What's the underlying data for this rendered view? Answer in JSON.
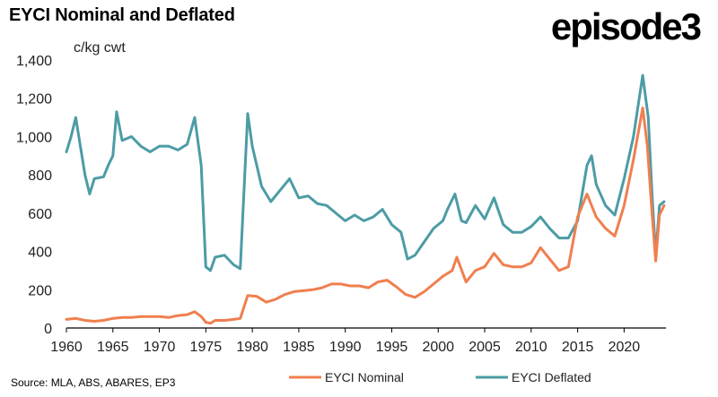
{
  "header": {
    "title": "EYCI Nominal and Deflated",
    "logo_text": "episode3"
  },
  "footer": {
    "source": "Source: MLA, ABS, ABARES, EP3"
  },
  "chart_data": {
    "type": "line",
    "title": "EYCI Nominal and Deflated",
    "ylabel": "c/kg cwt",
    "xlim": [
      1960,
      2024.5
    ],
    "ylim": [
      0,
      1400
    ],
    "x_ticks": [
      1960,
      1965,
      1970,
      1975,
      1980,
      1985,
      1990,
      1995,
      2000,
      2005,
      2010,
      2015,
      2020
    ],
    "x_tick_labels": [
      "1960",
      "1965",
      "1970",
      "1975",
      "1980",
      "1985",
      "1990",
      "1995",
      "2000",
      "2005",
      "2010",
      "2015",
      "2020"
    ],
    "y_ticks": [
      0,
      200,
      400,
      600,
      800,
      1000,
      1200,
      1400
    ],
    "y_tick_labels": [
      "0",
      "200",
      "400",
      "600",
      "800",
      "1,000",
      "1,200",
      "1,400"
    ],
    "grid": false,
    "legend_position": "bottom",
    "colors": {
      "nominal": "#F07F4F",
      "deflated": "#4C9CA5",
      "axis": "#000000"
    },
    "series": [
      {
        "name": "EYCI Nominal",
        "x": [
          1960,
          1961,
          1962,
          1963,
          1964,
          1965,
          1966,
          1967,
          1968,
          1969,
          1970,
          1971,
          1972,
          1973,
          1973.8,
          1974.5,
          1975,
          1975.5,
          1976,
          1977,
          1978,
          1978.7,
          1979.5,
          1980.5,
          1981.5,
          1982.5,
          1983.5,
          1984.5,
          1985.5,
          1986.5,
          1987.5,
          1988.5,
          1989.5,
          1990.5,
          1991.5,
          1992.5,
          1993.5,
          1994.5,
          1995.5,
          1996.5,
          1997.5,
          1998.5,
          1999.5,
          2000.5,
          2001.5,
          2002,
          2003,
          2004,
          2005,
          2006,
          2007,
          2008,
          2009,
          2010,
          2011,
          2012,
          2013,
          2014,
          2015,
          2016,
          2017,
          2018,
          2019,
          2020,
          2021,
          2022,
          2022.5,
          2023,
          2023.4,
          2023.8,
          2024.3
        ],
        "values": [
          45,
          50,
          40,
          35,
          40,
          50,
          55,
          55,
          60,
          60,
          60,
          55,
          65,
          70,
          85,
          60,
          30,
          25,
          40,
          40,
          45,
          50,
          170,
          165,
          135,
          150,
          175,
          190,
          195,
          200,
          210,
          230,
          230,
          220,
          220,
          210,
          240,
          250,
          215,
          175,
          160,
          190,
          230,
          270,
          300,
          370,
          240,
          300,
          320,
          390,
          330,
          320,
          320,
          340,
          420,
          360,
          300,
          320,
          580,
          700,
          580,
          520,
          480,
          640,
          880,
          1150,
          950,
          600,
          350,
          590,
          640
        ]
      },
      {
        "name": "EYCI Deflated",
        "x": [
          1960,
          1960.5,
          1961,
          1962,
          1962.5,
          1963,
          1964,
          1964.5,
          1965,
          1965.4,
          1966,
          1967,
          1968,
          1969,
          1970,
          1971,
          1972,
          1973,
          1973.8,
          1974.5,
          1975,
          1975.5,
          1976,
          1977,
          1978,
          1978.7,
          1979.5,
          1980,
          1981,
          1982,
          1983,
          1984,
          1985,
          1986,
          1987,
          1988,
          1989,
          1990,
          1991,
          1992,
          1993,
          1994,
          1995,
          1996,
          1996.7,
          1997.5,
          1998.5,
          1999.5,
          2000.5,
          2001,
          2001.8,
          2002.5,
          2003,
          2004,
          2005,
          2006,
          2007,
          2008,
          2009,
          2010,
          2011,
          2012,
          2013,
          2014,
          2015,
          2016,
          2016.5,
          2017,
          2018,
          2019,
          2020,
          2021,
          2022,
          2022.6,
          2023,
          2023.4,
          2023.8,
          2024.3
        ],
        "values": [
          920,
          1000,
          1100,
          800,
          700,
          780,
          790,
          850,
          900,
          1130,
          980,
          1000,
          950,
          920,
          950,
          950,
          930,
          960,
          1100,
          850,
          320,
          300,
          370,
          380,
          330,
          310,
          1120,
          950,
          740,
          660,
          720,
          780,
          680,
          690,
          650,
          640,
          600,
          560,
          590,
          560,
          580,
          620,
          540,
          500,
          360,
          380,
          450,
          520,
          560,
          620,
          700,
          560,
          550,
          640,
          570,
          680,
          540,
          500,
          500,
          530,
          580,
          520,
          470,
          470,
          560,
          850,
          900,
          750,
          640,
          590,
          780,
          1000,
          1320,
          1100,
          700,
          380,
          640,
          660
        ]
      }
    ]
  }
}
